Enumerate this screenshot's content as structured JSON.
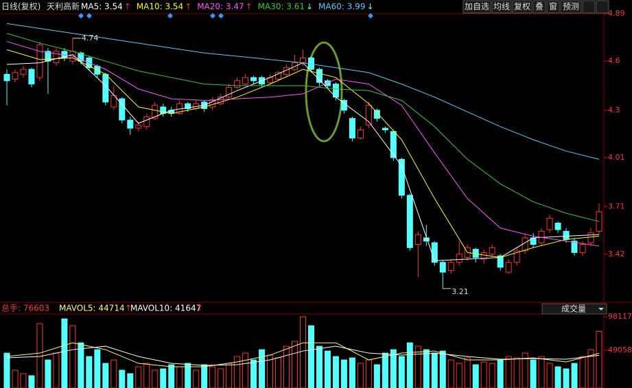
{
  "header": {
    "mode": "日线(复权)",
    "stock": "天利高新",
    "ma_labels": [
      {
        "text": "MA5: 3.54",
        "arrow": "↑"
      },
      {
        "text": "MA10: 3.54",
        "arrow": "↑"
      },
      {
        "text": "MA20: 3.47",
        "arrow": "↑"
      },
      {
        "text": "MA30: 3.61",
        "arrow": "↓"
      },
      {
        "text": "MA60: 3.99",
        "arrow": "↓"
      }
    ],
    "buttons": [
      "加自选",
      "均线",
      "复权",
      "叠",
      "窗",
      "预测"
    ]
  },
  "volume_header": {
    "total": "总手: 76603",
    "mavol5": "MAVOL5: 44714",
    "mavol10": "MAVOL10: 41647",
    "arrow": "↑",
    "selector": "成交量"
  },
  "chart_data": [
    {
      "type": "candlestick",
      "ylim": [
        3.13,
        4.89
      ],
      "yticks": [
        4.89,
        4.6,
        4.3,
        4.01,
        3.71,
        3.42
      ],
      "up_color": "#ff3232",
      "down_color": "#54ffff",
      "open": [
        4.52,
        4.49,
        4.52,
        4.55,
        4.5,
        4.66,
        4.59,
        4.66,
        4.6,
        4.65,
        4.62,
        4.57,
        4.52,
        4.32,
        4.37,
        4.24,
        4.19,
        4.2,
        4.25,
        4.32,
        4.3,
        4.28,
        4.34,
        4.31,
        4.35,
        4.32,
        4.34,
        4.38,
        4.44,
        4.46,
        4.5,
        4.5,
        4.47,
        4.49,
        4.52,
        4.55,
        4.59,
        4.62,
        4.55,
        4.48,
        4.46,
        4.36,
        4.25,
        4.13,
        4.21,
        4.3,
        4.19,
        4.17,
        4.0,
        3.78,
        3.48,
        3.52,
        3.49,
        3.37,
        3.32,
        3.37,
        3.4,
        3.45,
        3.39,
        3.42,
        3.41,
        3.31,
        3.37,
        3.44,
        3.52,
        3.49,
        3.57,
        3.61,
        3.56,
        3.5,
        3.43,
        3.49,
        3.56
      ],
      "high": [
        4.55,
        4.55,
        4.57,
        4.56,
        4.72,
        4.68,
        4.68,
        4.68,
        4.74,
        4.66,
        4.63,
        4.58,
        4.53,
        4.45,
        4.38,
        4.26,
        4.23,
        4.28,
        4.35,
        4.34,
        4.32,
        4.36,
        4.35,
        4.36,
        4.36,
        4.38,
        4.4,
        4.46,
        4.5,
        4.52,
        4.51,
        4.51,
        4.52,
        4.54,
        4.58,
        4.64,
        4.67,
        4.63,
        4.56,
        4.49,
        4.47,
        4.37,
        4.26,
        4.2,
        4.35,
        4.31,
        4.2,
        4.18,
        4.01,
        3.79,
        3.56,
        3.6,
        3.5,
        3.38,
        3.39,
        3.5,
        3.48,
        3.46,
        3.45,
        3.48,
        3.42,
        3.39,
        3.46,
        3.54,
        3.55,
        3.58,
        3.66,
        3.62,
        3.58,
        3.52,
        3.5,
        3.58,
        3.73
      ],
      "low": [
        4.33,
        4.47,
        4.5,
        4.44,
        4.48,
        4.4,
        4.57,
        4.6,
        4.58,
        4.58,
        4.54,
        4.5,
        4.33,
        4.3,
        4.22,
        4.15,
        4.17,
        4.18,
        4.24,
        4.26,
        4.26,
        4.27,
        4.29,
        4.3,
        4.29,
        4.3,
        4.33,
        4.37,
        4.43,
        4.45,
        4.46,
        4.44,
        4.46,
        4.48,
        4.51,
        4.54,
        4.57,
        4.53,
        4.45,
        4.43,
        4.36,
        4.28,
        4.11,
        4.12,
        4.19,
        4.23,
        4.16,
        3.99,
        3.76,
        3.44,
        3.28,
        3.47,
        3.35,
        3.21,
        3.3,
        3.35,
        3.38,
        3.37,
        3.36,
        3.4,
        3.32,
        3.3,
        3.35,
        3.42,
        3.46,
        3.47,
        3.55,
        3.55,
        3.49,
        3.41,
        3.41,
        3.47,
        3.54
      ],
      "close": [
        4.48,
        4.53,
        4.55,
        4.46,
        4.7,
        4.6,
        4.66,
        4.62,
        4.66,
        4.6,
        4.56,
        4.52,
        4.35,
        4.39,
        4.24,
        4.19,
        4.21,
        4.26,
        4.33,
        4.28,
        4.28,
        4.34,
        4.31,
        4.34,
        4.31,
        4.36,
        4.38,
        4.44,
        4.48,
        4.5,
        4.48,
        4.46,
        4.5,
        4.53,
        4.56,
        4.59,
        4.62,
        4.55,
        4.47,
        4.45,
        4.38,
        4.3,
        4.13,
        4.18,
        4.33,
        4.25,
        4.18,
        4.01,
        3.78,
        3.46,
        3.54,
        3.5,
        3.37,
        3.31,
        3.37,
        3.42,
        3.46,
        3.4,
        3.43,
        3.46,
        3.34,
        3.37,
        3.44,
        3.52,
        3.48,
        3.56,
        3.64,
        3.57,
        3.51,
        3.43,
        3.48,
        3.55,
        3.68
      ],
      "ma_x": [
        0,
        4,
        8,
        12,
        16,
        20,
        24,
        28,
        32,
        36,
        40,
        44,
        48,
        52,
        56,
        60,
        64,
        68,
        72
      ],
      "series": [
        {
          "name": "MA5",
          "color": "#ffffff",
          "values": [
            4.58,
            4.59,
            4.64,
            4.45,
            4.22,
            4.3,
            4.33,
            4.42,
            4.5,
            4.59,
            4.38,
            4.23,
            3.96,
            3.38,
            3.39,
            3.4,
            3.52,
            3.53,
            3.54
          ]
        },
        {
          "name": "MA10",
          "color": "#ffff00",
          "values": [
            4.67,
            4.61,
            4.62,
            4.52,
            4.32,
            4.28,
            4.32,
            4.38,
            4.46,
            4.55,
            4.5,
            4.34,
            4.12,
            3.76,
            3.43,
            3.4,
            3.46,
            3.51,
            3.53
          ]
        },
        {
          "name": "MA20",
          "color": "#ff55ff",
          "values": [
            4.72,
            4.66,
            4.63,
            4.55,
            4.43,
            4.37,
            4.36,
            4.37,
            4.38,
            4.4,
            4.49,
            4.46,
            4.33,
            4.04,
            3.76,
            3.58,
            3.53,
            3.5,
            3.47
          ]
        },
        {
          "name": "MA30",
          "color": "#33cc33",
          "values": [
            4.77,
            4.71,
            4.66,
            4.6,
            4.54,
            4.5,
            4.46,
            4.45,
            4.45,
            4.45,
            4.43,
            4.42,
            4.36,
            4.2,
            4.0,
            3.85,
            3.74,
            3.67,
            3.62
          ]
        },
        {
          "name": "MA60",
          "color": "#55ccff",
          "values": [
            4.83,
            4.8,
            4.77,
            4.74,
            4.71,
            4.68,
            4.65,
            4.63,
            4.61,
            4.59,
            4.56,
            4.53,
            4.46,
            4.38,
            4.29,
            4.2,
            4.12,
            4.05,
            4.0
          ]
        }
      ],
      "annotations": [
        {
          "x": 8,
          "value": 4.74
        },
        {
          "x": 53,
          "value": 3.21
        }
      ]
    },
    {
      "type": "volume",
      "ylim": [
        0,
        98117
      ],
      "yticks": [
        98117,
        49058
      ],
      "values": [
        45000,
        20000,
        15000,
        12000,
        88000,
        35000,
        45000,
        95000,
        85000,
        60000,
        40000,
        50000,
        30000,
        35000,
        20000,
        15000,
        25000,
        30000,
        20000,
        22000,
        28000,
        25000,
        30000,
        20000,
        28000,
        25000,
        22000,
        30000,
        40000,
        45000,
        35000,
        50000,
        42000,
        38000,
        55000,
        62000,
        98000,
        85000,
        55000,
        48000,
        40000,
        35000,
        38000,
        30000,
        35000,
        28000,
        45000,
        50000,
        40000,
        60000,
        55000,
        50000,
        45000,
        48000,
        35000,
        30000,
        38000,
        28000,
        32000,
        30000,
        35000,
        40000,
        38000,
        45000,
        35000,
        40000,
        30000,
        25000,
        22000,
        30000,
        40000,
        50000,
        76603
      ],
      "ma_x": [
        0,
        4,
        8,
        12,
        16,
        20,
        24,
        28,
        32,
        36,
        40,
        44,
        48,
        52,
        56,
        60,
        64,
        68,
        72
      ],
      "series": [
        {
          "name": "MAVOL5",
          "color": "#ffff66",
          "values": [
            40000,
            45000,
            60000,
            50000,
            30000,
            25000,
            25000,
            32000,
            42000,
            60000,
            60000,
            35000,
            45000,
            48000,
            35000,
            35000,
            38000,
            32000,
            44714
          ]
        },
        {
          "name": "MAVOL10",
          "color": "#ffffff",
          "values": [
            38000,
            40000,
            50000,
            55000,
            40000,
            30000,
            27000,
            28000,
            35000,
            48000,
            55000,
            45000,
            42000,
            45000,
            40000,
            36000,
            37000,
            36000,
            41647
          ]
        }
      ]
    }
  ]
}
